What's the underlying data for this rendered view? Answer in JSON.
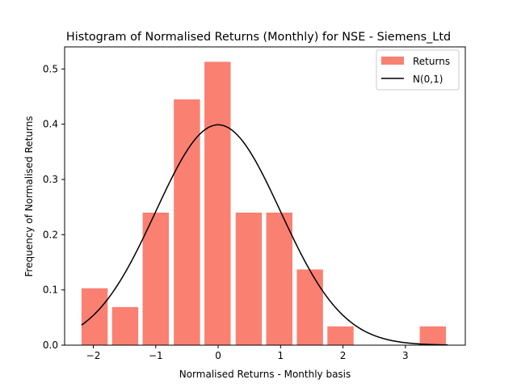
{
  "chart_data": {
    "type": "bar",
    "title": "Histogram of Normalised Returns (Monthly) for NSE - Siemens_Ltd",
    "xlabel": "Normalised Returns - Monthly basis",
    "ylabel": "Frequency of Normalised Returns",
    "xlim": [
      -2.46,
      3.96
    ],
    "ylim": [
      0.0,
      0.54
    ],
    "grid": false,
    "legend_position": "top-right",
    "xticks": [
      {
        "value": -2,
        "label": "−2"
      },
      {
        "value": -1,
        "label": "−1"
      },
      {
        "value": 0,
        "label": "0"
      },
      {
        "value": 1,
        "label": "1"
      },
      {
        "value": 2,
        "label": "2"
      },
      {
        "value": 3,
        "label": "3"
      }
    ],
    "yticks": [
      {
        "value": 0.0,
        "label": "0.0"
      },
      {
        "value": 0.1,
        "label": "0.1"
      },
      {
        "value": 0.2,
        "label": "0.2"
      },
      {
        "value": 0.3,
        "label": "0.3"
      },
      {
        "value": 0.4,
        "label": "0.4"
      },
      {
        "value": 0.5,
        "label": "0.5"
      }
    ],
    "series": [
      {
        "name": "Returns",
        "kind": "histogram",
        "color": "#fa8072",
        "bins": [
          {
            "x0": -2.19,
            "x1": -1.77,
            "value": 0.103
          },
          {
            "x0": -1.7,
            "x1": -1.28,
            "value": 0.069
          },
          {
            "x0": -1.21,
            "x1": -0.79,
            "value": 0.24
          },
          {
            "x0": -0.71,
            "x1": -0.29,
            "value": 0.445
          },
          {
            "x0": -0.22,
            "x1": 0.2,
            "value": 0.513
          },
          {
            "x0": 0.28,
            "x1": 0.7,
            "value": 0.24
          },
          {
            "x0": 0.77,
            "x1": 1.19,
            "value": 0.24
          },
          {
            "x0": 1.26,
            "x1": 1.68,
            "value": 0.137
          },
          {
            "x0": 1.75,
            "x1": 2.17,
            "value": 0.034
          },
          {
            "x0": 3.23,
            "x1": 3.65,
            "value": 0.034
          }
        ]
      },
      {
        "name": "N(0,1)",
        "kind": "line",
        "color": "#000000",
        "function": "standard_normal_pdf",
        "x_range": [
          -2.19,
          3.68
        ]
      }
    ]
  }
}
